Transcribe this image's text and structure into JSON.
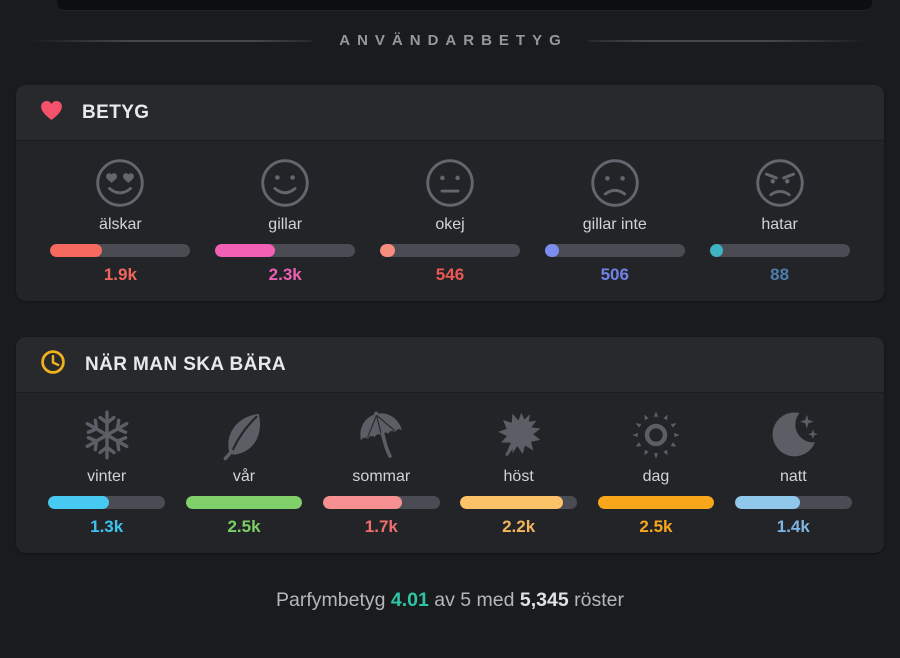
{
  "page": {
    "section_title": "ANVÄNDARBETYG"
  },
  "rating_card": {
    "title": "BETYG",
    "icon": "heart-icon",
    "icon_color": "#f4516c",
    "items": [
      {
        "id": "alskar",
        "label": "älskar",
        "value": "1.9k",
        "fill_pct": 37,
        "color": "#f6695e",
        "value_color": "#f3655c",
        "icon": "love-face-icon"
      },
      {
        "id": "gillar",
        "label": "gillar",
        "value": "2.3k",
        "fill_pct": 43,
        "color": "#f160b4",
        "value_color": "#ec5fb2",
        "icon": "smile-face-icon"
      },
      {
        "id": "okej",
        "label": "okej",
        "value": "546",
        "fill_pct": 11,
        "color": "#f68d7f",
        "value_color": "#ea5852",
        "icon": "neutral-face-icon"
      },
      {
        "id": "gillar-inte",
        "label": "gillar inte",
        "value": "506",
        "fill_pct": 10,
        "color": "#7b8ef0",
        "value_color": "#6f83e6",
        "icon": "frown-face-icon"
      },
      {
        "id": "hatar",
        "label": "hatar",
        "value": "88",
        "fill_pct": 4,
        "color": "#3fb4c4",
        "value_color": "#4d7dab",
        "icon": "angry-face-icon"
      }
    ]
  },
  "wear_card": {
    "title": "NÄR MAN SKA BÄRA",
    "icon": "clock-icon",
    "icon_color": "#eeb11d",
    "items": [
      {
        "id": "vinter",
        "label": "vinter",
        "value": "1.3k",
        "fill_pct": 52,
        "color": "#47c9f2",
        "value_color": "#3ec3ee",
        "icon": "snowflake-icon"
      },
      {
        "id": "var",
        "label": "vår",
        "value": "2.5k",
        "fill_pct": 100,
        "color": "#80d169",
        "value_color": "#7bcf65",
        "icon": "leaf-icon"
      },
      {
        "id": "sommar",
        "label": "sommar",
        "value": "1.7k",
        "fill_pct": 68,
        "color": "#f79090",
        "value_color": "#f06e6b",
        "icon": "beach-umbrella-icon"
      },
      {
        "id": "host",
        "label": "höst",
        "value": "2.2k",
        "fill_pct": 88,
        "color": "#fbc268",
        "value_color": "#f3b45a",
        "icon": "maple-leaf-icon"
      },
      {
        "id": "dag",
        "label": "dag",
        "value": "2.5k",
        "fill_pct": 100,
        "color": "#f9a71a",
        "value_color": "#f6a71d",
        "icon": "sun-icon"
      },
      {
        "id": "natt",
        "label": "natt",
        "value": "1.4k",
        "fill_pct": 56,
        "color": "#90c8ec",
        "value_color": "#7eb5e2",
        "icon": "moon-stars-icon"
      }
    ]
  },
  "summary": {
    "prefix": "Parfymbetyg",
    "rating": "4.01",
    "rating_color": "#2ec4a5",
    "middle": "av 5 med",
    "votes": "5,345",
    "suffix": "röster"
  }
}
